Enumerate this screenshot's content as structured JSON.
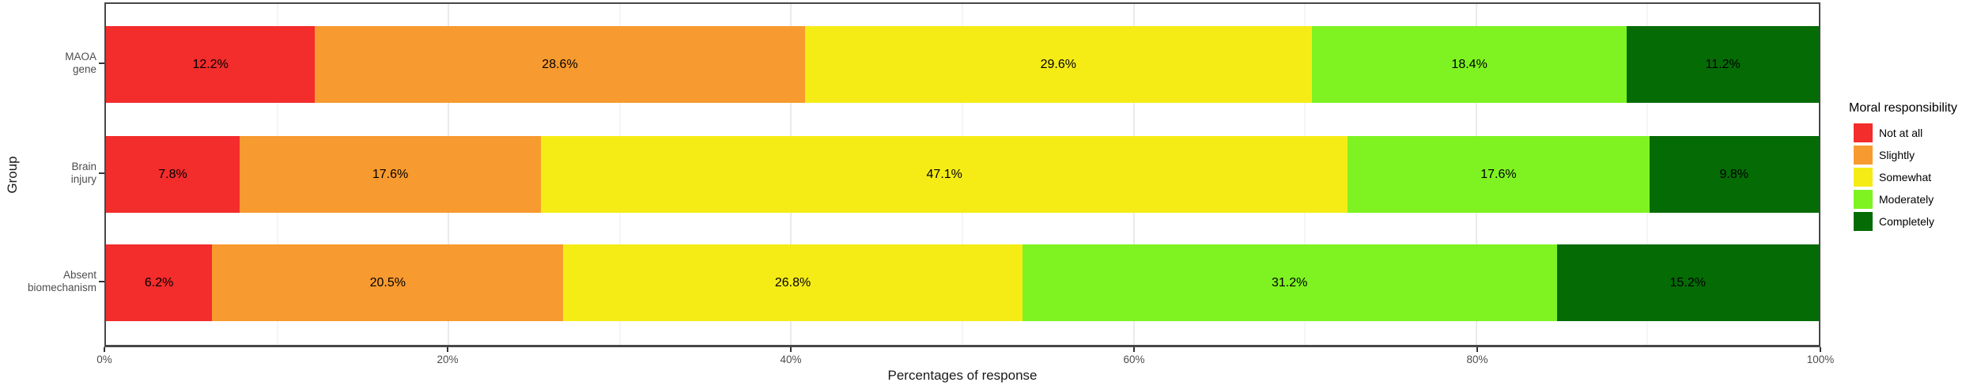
{
  "chart_data": {
    "type": "bar",
    "orientation": "horizontal",
    "stacked": true,
    "stack_total": 100,
    "xlabel": "Percentages of response",
    "ylabel": "Group",
    "xlim": [
      0,
      100
    ],
    "grid": "vertical, light gray, major every 20%, minor every 10%",
    "legend_position": "right",
    "legend_title": "Moral responsibility",
    "categories": [
      {
        "lines": "MAOA\ngene"
      },
      {
        "lines": "Brain\ninjury"
      },
      {
        "lines": "Absent\nbiomechanism"
      }
    ],
    "series": [
      {
        "name": "Not at all",
        "color": "#F32C2C",
        "values": [
          12.2,
          7.8,
          6.2
        ],
        "labels": [
          "12.2%",
          "7.8%",
          "6.2%"
        ]
      },
      {
        "name": "Slightly",
        "color": "#F79A2F",
        "values": [
          28.6,
          17.6,
          20.5
        ],
        "labels": [
          "28.6%",
          "17.6%",
          "20.5%"
        ]
      },
      {
        "name": "Somewhat",
        "color": "#F5EC16",
        "values": [
          29.6,
          47.1,
          26.8
        ],
        "labels": [
          "29.6%",
          "47.1%",
          "26.8%"
        ]
      },
      {
        "name": "Moderately",
        "color": "#7EF321",
        "values": [
          18.4,
          17.6,
          31.2
        ],
        "labels": [
          "18.4%",
          "17.6%",
          "31.2%"
        ]
      },
      {
        "name": "Completely",
        "color": "#056B05",
        "values": [
          11.2,
          9.8,
          15.2
        ],
        "labels": [
          "11.2%",
          "9.8%",
          "15.2%"
        ]
      }
    ],
    "x_ticks": [
      {
        "value": 0,
        "label": "0%"
      },
      {
        "value": 20,
        "label": "20%"
      },
      {
        "value": 40,
        "label": "40%"
      },
      {
        "value": 60,
        "label": "60%"
      },
      {
        "value": 80,
        "label": "80%"
      },
      {
        "value": 100,
        "label": "100%"
      }
    ],
    "minor_grid_values": [
      10,
      30,
      50,
      70,
      90
    ]
  }
}
